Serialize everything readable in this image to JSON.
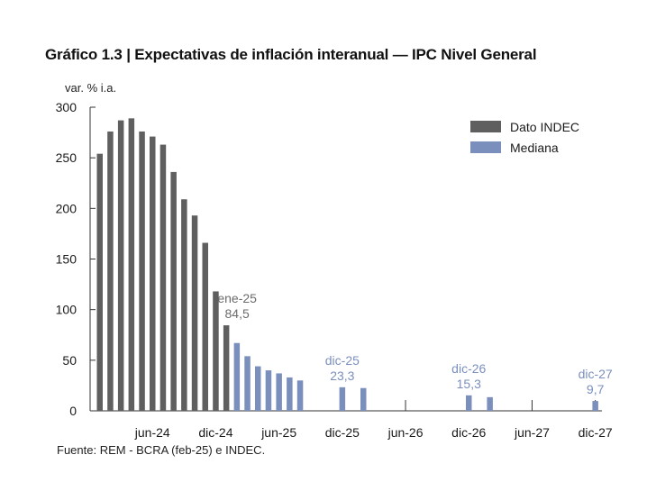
{
  "chart_title": "Gráfico 1.3 | Expectativas de inflación interanual — IPC Nivel General",
  "source": "Fuente: REM - BCRA (feb-25) e INDEC.",
  "colors": {
    "dato_indec": "#5f5f5f",
    "mediana": "#7b8fbd",
    "annotation_gray": "#6b6b6b",
    "annotation_blue": "#7b8fbd"
  },
  "chart_data": {
    "type": "bar",
    "title": "Gráfico 1.3 | Expectativas de inflación interanual — IPC Nivel General",
    "ylabel": "var. % i.a.",
    "ylim": [
      0,
      300
    ],
    "yticks": [
      0,
      50,
      100,
      150,
      200,
      250,
      300
    ],
    "xticks": [
      "jun-24",
      "dic-24",
      "jun-25",
      "dic-25",
      "jun-26",
      "dic-26",
      "jun-27",
      "dic-27"
    ],
    "grid": false,
    "legend_position": "top-right",
    "series": [
      {
        "name": "Dato INDEC",
        "points": [
          {
            "x": "ene-24",
            "y": 254
          },
          {
            "x": "feb-24",
            "y": 276
          },
          {
            "x": "mar-24",
            "y": 287
          },
          {
            "x": "abr-24",
            "y": 289
          },
          {
            "x": "may-24",
            "y": 276
          },
          {
            "x": "jun-24",
            "y": 271
          },
          {
            "x": "jul-24",
            "y": 263
          },
          {
            "x": "ago-24",
            "y": 236
          },
          {
            "x": "sep-24",
            "y": 209
          },
          {
            "x": "oct-24",
            "y": 193
          },
          {
            "x": "nov-24",
            "y": 166
          },
          {
            "x": "dic-24",
            "y": 118
          },
          {
            "x": "ene-25",
            "y": 84.5
          }
        ]
      },
      {
        "name": "Mediana",
        "points": [
          {
            "x": "feb-25",
            "y": 67
          },
          {
            "x": "mar-25",
            "y": 54
          },
          {
            "x": "abr-25",
            "y": 44
          },
          {
            "x": "may-25",
            "y": 40
          },
          {
            "x": "jun-25",
            "y": 37
          },
          {
            "x": "jul-25",
            "y": 33
          },
          {
            "x": "ago-25",
            "y": 30
          },
          {
            "x": "dic-25",
            "y": 23.3
          },
          {
            "x": "feb-26",
            "y": 22.5
          },
          {
            "x": "dic-26",
            "y": 15.3
          },
          {
            "x": "feb-27",
            "y": 13.5
          },
          {
            "x": "dic-27",
            "y": 9.7
          }
        ]
      }
    ],
    "annotations": [
      {
        "label": "ene-25",
        "value": "84,5",
        "color": "gray"
      },
      {
        "label": "dic-25",
        "value": "23,3",
        "color": "blue"
      },
      {
        "label": "dic-26",
        "value": "15,3",
        "color": "blue"
      },
      {
        "label": "dic-27",
        "value": "9,7",
        "color": "blue"
      }
    ]
  }
}
